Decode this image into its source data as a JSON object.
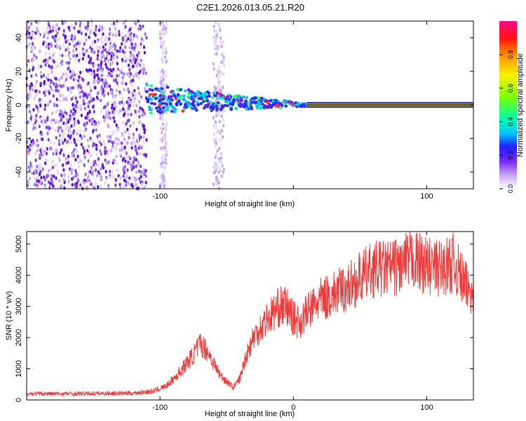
{
  "colors": {
    "signal_line": "#ef3a3a",
    "band_core": "#ff0000",
    "band_edge": "#00e000",
    "scatter": "#6d2ed1"
  },
  "chart_data": [
    {
      "type": "heatmap",
      "title": "C2E1.2026.013.05.21.R20",
      "xlabel": "Height of straight line (km)",
      "ylabel": "Frequency (Hz)",
      "xlim": [
        -200,
        135
      ],
      "ylim": [
        -50,
        50
      ],
      "xticks": [
        -100,
        0,
        100
      ],
      "xtick_labels": [
        "-100",
        "",
        "100"
      ],
      "yticks": [
        -40,
        -20,
        0,
        20,
        40
      ],
      "ytick_labels": [
        "-40",
        "-20",
        "0",
        "20",
        "40"
      ],
      "colorbar": {
        "label": "Normalized spectral amplitude",
        "range": [
          0,
          1
        ],
        "ticks": [
          0,
          0.2,
          0.4,
          0.6,
          0.8
        ],
        "tick_labels": [
          "0.0",
          "0.2",
          "0.4",
          "0.6",
          "0.8"
        ]
      },
      "regions": [
        {
          "name": "noise",
          "x_range": [
            -200,
            -110
          ],
          "freq_range": [
            -50,
            50
          ],
          "amplitude": 0.05
        },
        {
          "name": "noise-stripe",
          "x_range": [
            -100,
            -95
          ],
          "freq_range": [
            -50,
            50
          ],
          "amplitude": 0.02
        },
        {
          "name": "noise-stripe",
          "x_range": [
            -60,
            -52
          ],
          "freq_range": [
            -50,
            50
          ],
          "amplitude": 0.02
        },
        {
          "name": "converging-signal",
          "x_range": [
            -110,
            10
          ],
          "freq_start": [
            -5,
            12
          ],
          "freq_end": [
            -1,
            1
          ],
          "amplitude": 0.4
        },
        {
          "name": "steady-band",
          "x_range": [
            10,
            135
          ],
          "freq": 0,
          "amplitude": 0.9
        }
      ]
    },
    {
      "type": "line",
      "xlabel": "Height of straight line (km)",
      "ylabel": "SNR (10 * v/v)",
      "xlim": [
        -200,
        135
      ],
      "ylim": [
        0,
        5400
      ],
      "xticks": [
        -100,
        0,
        100
      ],
      "xtick_labels": [
        "-100",
        "0",
        "100"
      ],
      "yticks": [
        0,
        1000,
        2000,
        3000,
        4000,
        5000
      ],
      "ytick_labels": [
        "0",
        "1000",
        "2000",
        "3000",
        "4000",
        "5000"
      ],
      "series": [
        {
          "name": "SNR",
          "x": [
            -200,
            -160,
            -120,
            -105,
            -95,
            -85,
            -75,
            -70,
            -65,
            -60,
            -55,
            -50,
            -45,
            -40,
            -35,
            -30,
            -25,
            -20,
            -15,
            -10,
            -5,
            0,
            5,
            10,
            20,
            30,
            40,
            50,
            60,
            70,
            80,
            90,
            100,
            110,
            120,
            125,
            130,
            135
          ],
          "y": [
            200,
            200,
            220,
            280,
            450,
            900,
            1450,
            1800,
            1600,
            1200,
            800,
            600,
            400,
            700,
            1500,
            2000,
            2300,
            2600,
            2800,
            3000,
            3000,
            2600,
            2500,
            2800,
            3200,
            3400,
            3600,
            3900,
            4200,
            4200,
            4300,
            4500,
            4300,
            4200,
            4400,
            4000,
            3600,
            3500
          ]
        }
      ]
    }
  ]
}
